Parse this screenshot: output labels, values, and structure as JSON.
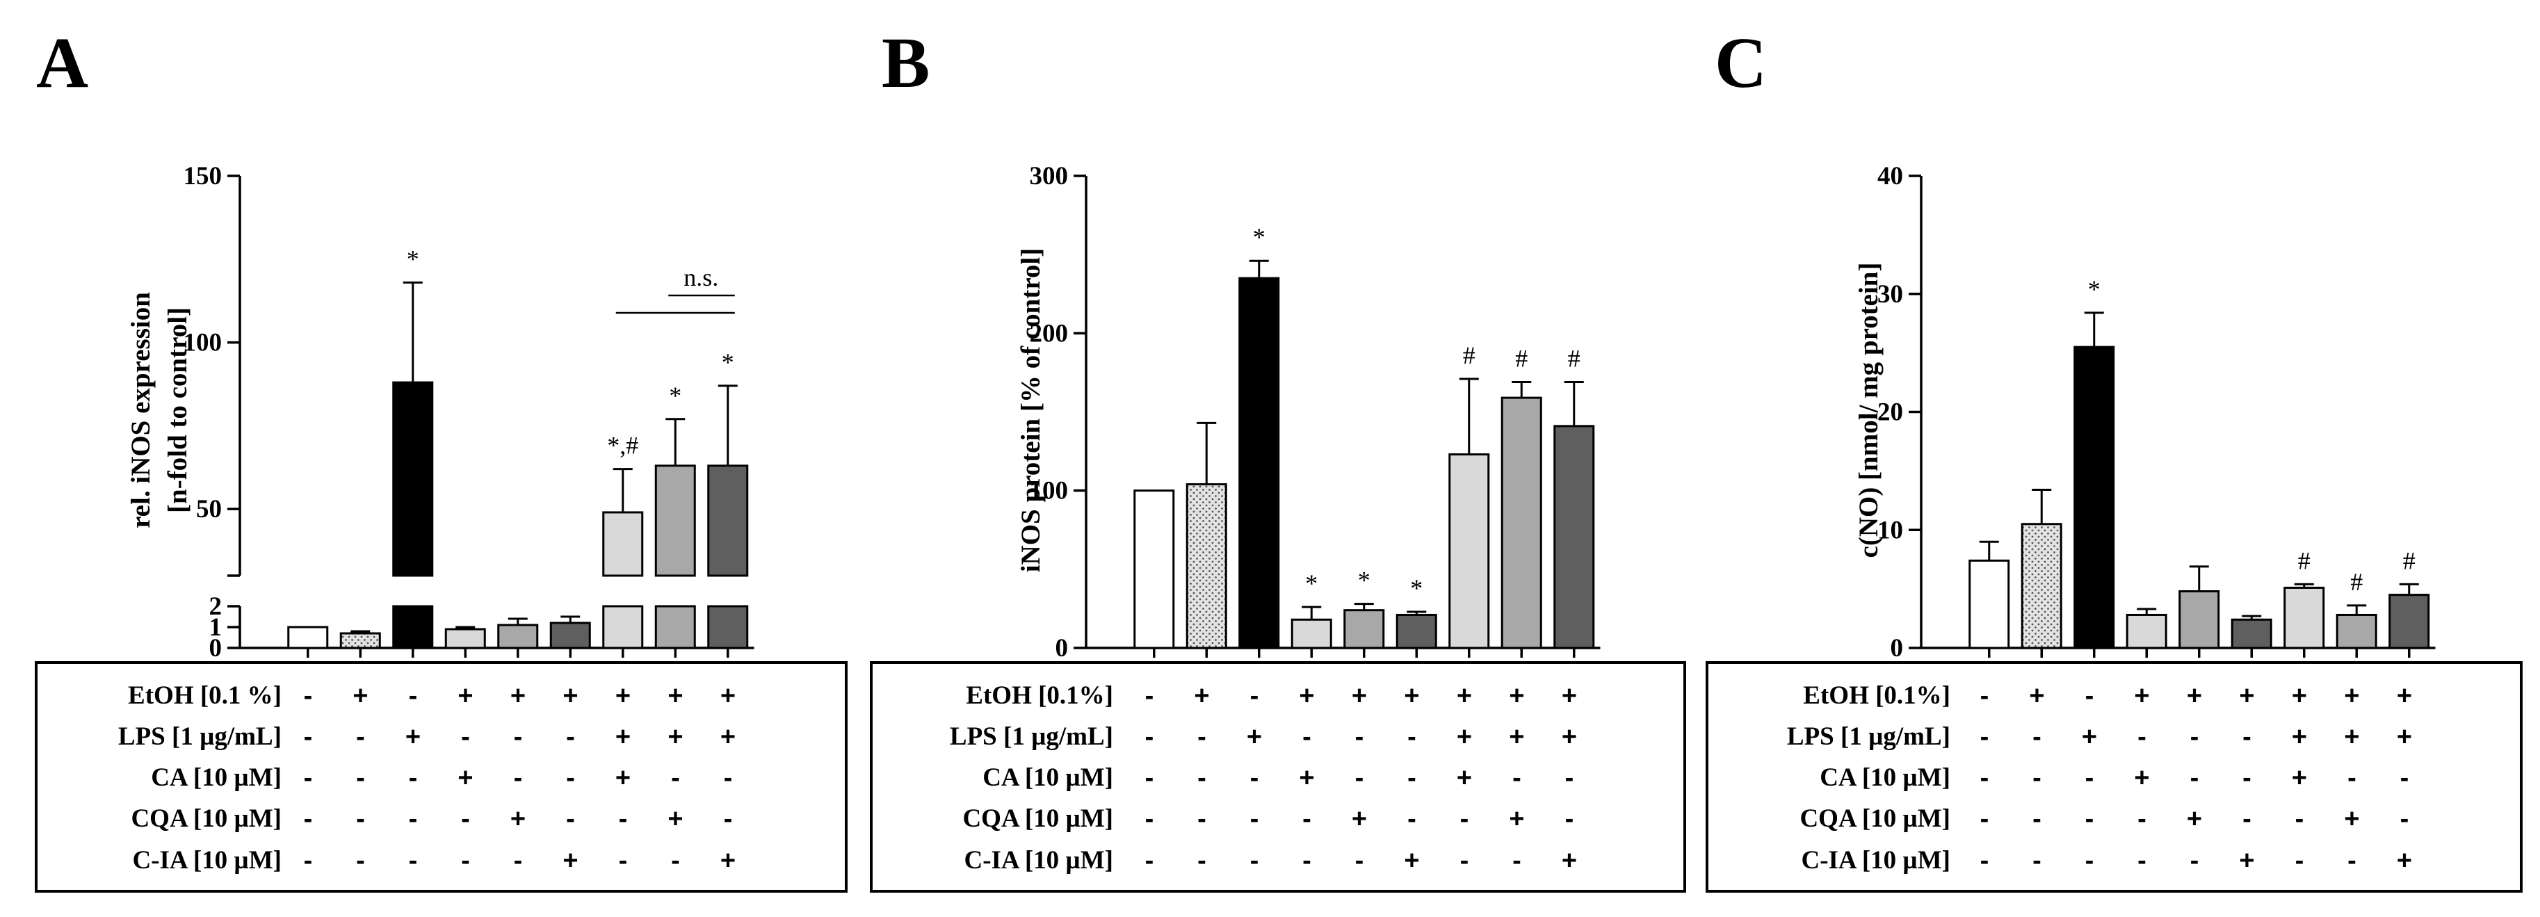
{
  "chart_data": [
    {
      "panel": "A",
      "type": "bar",
      "ylabel": [
        "rel. iNOS expression",
        "[n-fold to control]"
      ],
      "axis_break": {
        "lower_range": [
          0,
          2
        ],
        "upper_range": [
          30,
          150
        ]
      },
      "yticks_lower": [
        0,
        1,
        2
      ],
      "yticks_upper": [
        50,
        100,
        150
      ],
      "values": [
        1,
        0.7,
        88,
        0.9,
        1.1,
        1.2,
        49,
        63,
        63
      ],
      "errors": [
        0,
        0.1,
        30,
        0.1,
        0.3,
        0.3,
        13,
        14,
        24
      ],
      "annotations": [
        "",
        "",
        "*",
        "",
        "",
        "",
        "*,#",
        "*",
        "*"
      ],
      "bracket_label": "n.s."
    },
    {
      "panel": "B",
      "type": "bar",
      "ylabel": [
        "iNOS protein [% of control]"
      ],
      "ylim": [
        0,
        300
      ],
      "yticks": [
        0,
        100,
        200,
        300
      ],
      "values": [
        100,
        104,
        235,
        18,
        24,
        21,
        123,
        159,
        141
      ],
      "errors": [
        0,
        39,
        11,
        8,
        4,
        2,
        48,
        10,
        28
      ],
      "annotations": [
        "",
        "",
        "*",
        "*",
        "*",
        "*",
        "#",
        "#",
        "#"
      ]
    },
    {
      "panel": "C",
      "type": "bar",
      "ylabel": [
        "c(NO) [nmol/ mg protein]"
      ],
      "ylim": [
        0,
        40
      ],
      "yticks": [
        0,
        10,
        20,
        30,
        40
      ],
      "values": [
        7.4,
        10.5,
        25.5,
        2.8,
        4.8,
        2.4,
        5.1,
        2.8,
        4.5
      ],
      "errors": [
        1.6,
        2.9,
        2.9,
        0.5,
        2.1,
        0.3,
        0.3,
        0.8,
        0.9
      ],
      "annotations": [
        "",
        "",
        "*",
        "",
        "",
        "",
        "#",
        "#",
        "#"
      ]
    }
  ],
  "treatment_tables": [
    {
      "panel": "A",
      "rows": [
        {
          "label": "EtOH [0.1 %]",
          "signs": [
            "-",
            "+",
            "-",
            "+",
            "+",
            "+",
            "+",
            "+",
            "+"
          ]
        },
        {
          "label": "LPS [1 µg/mL]",
          "signs": [
            "-",
            "-",
            "+",
            "-",
            "-",
            "-",
            "+",
            "+",
            "+"
          ]
        },
        {
          "label": "CA [10 µM]",
          "signs": [
            "-",
            "-",
            "-",
            "+",
            "-",
            "-",
            "+",
            "-",
            "-"
          ]
        },
        {
          "label": "CQA [10 µM]",
          "signs": [
            "-",
            "-",
            "-",
            "-",
            "+",
            "-",
            "-",
            "+",
            "-"
          ]
        },
        {
          "label": "C-IA [10 µM]",
          "signs": [
            "-",
            "-",
            "-",
            "-",
            "-",
            "+",
            "-",
            "-",
            "+"
          ]
        }
      ]
    },
    {
      "panel": "B",
      "rows": [
        {
          "label": "EtOH [0.1%]",
          "signs": [
            "-",
            "+",
            "-",
            "+",
            "+",
            "+",
            "+",
            "+",
            "+"
          ]
        },
        {
          "label": "LPS [1 µg/mL]",
          "signs": [
            "-",
            "-",
            "+",
            "-",
            "-",
            "-",
            "+",
            "+",
            "+"
          ]
        },
        {
          "label": "CA [10 µM]",
          "signs": [
            "-",
            "-",
            "-",
            "+",
            "-",
            "-",
            "+",
            "-",
            "-"
          ]
        },
        {
          "label": "CQA [10 µM]",
          "signs": [
            "-",
            "-",
            "-",
            "-",
            "+",
            "-",
            "-",
            "+",
            "-"
          ]
        },
        {
          "label": "C-IA [10 µM]",
          "signs": [
            "-",
            "-",
            "-",
            "-",
            "-",
            "+",
            "-",
            "-",
            "+"
          ]
        }
      ]
    },
    {
      "panel": "C",
      "rows": [
        {
          "label": "EtOH [0.1%]",
          "signs": [
            "-",
            "+",
            "-",
            "+",
            "+",
            "+",
            "+",
            "+",
            "+"
          ]
        },
        {
          "label": "LPS [1 µg/mL]",
          "signs": [
            "-",
            "-",
            "+",
            "-",
            "-",
            "-",
            "+",
            "+",
            "+"
          ]
        },
        {
          "label": "CA [10 µM]",
          "signs": [
            "-",
            "-",
            "-",
            "+",
            "-",
            "-",
            "+",
            "-",
            "-"
          ]
        },
        {
          "label": "CQA [10 µM]",
          "signs": [
            "-",
            "-",
            "-",
            "-",
            "+",
            "-",
            "-",
            "+",
            "-"
          ]
        },
        {
          "label": "C-IA [10 µM]",
          "signs": [
            "-",
            "-",
            "-",
            "-",
            "-",
            "+",
            "-",
            "-",
            "+"
          ]
        }
      ]
    }
  ],
  "bar_styles": [
    {
      "fill": "#ffffff",
      "pattern": "none"
    },
    {
      "fill": "#dcdcdc",
      "pattern": "dots"
    },
    {
      "fill": "#000000",
      "pattern": "none"
    },
    {
      "fill": "#d9d9d9",
      "pattern": "none"
    },
    {
      "fill": "#a8a8a8",
      "pattern": "none"
    },
    {
      "fill": "#5f5f5f",
      "pattern": "none"
    },
    {
      "fill": "#d9d9d9",
      "pattern": "none"
    },
    {
      "fill": "#a8a8a8",
      "pattern": "none"
    },
    {
      "fill": "#5f5f5f",
      "pattern": "none"
    }
  ]
}
